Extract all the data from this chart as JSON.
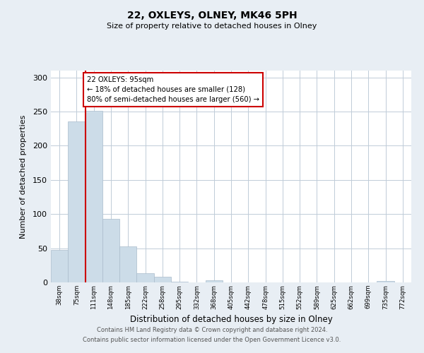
{
  "title1": "22, OXLEYS, OLNEY, MK46 5PH",
  "title2": "Size of property relative to detached houses in Olney",
  "xlabel": "Distribution of detached houses by size in Olney",
  "ylabel": "Number of detached properties",
  "bin_labels": [
    "38sqm",
    "75sqm",
    "111sqm",
    "148sqm",
    "185sqm",
    "222sqm",
    "258sqm",
    "295sqm",
    "332sqm",
    "368sqm",
    "405sqm",
    "442sqm",
    "478sqm",
    "515sqm",
    "552sqm",
    "589sqm",
    "625sqm",
    "662sqm",
    "699sqm",
    "735sqm",
    "772sqm"
  ],
  "bar_values": [
    48,
    236,
    251,
    93,
    53,
    13,
    8,
    1,
    0,
    3,
    0,
    0,
    0,
    0,
    0,
    0,
    0,
    0,
    0,
    2,
    0
  ],
  "bar_color": "#ccdce8",
  "bar_edgecolor": "#aabccc",
  "vline_x": 1.5,
  "vline_color": "#cc0000",
  "annotation_title": "22 OXLEYS: 95sqm",
  "annotation_line1": "← 18% of detached houses are smaller (128)",
  "annotation_line2": "80% of semi-detached houses are larger (560) →",
  "annotation_box_color": "#cc0000",
  "ylim": [
    0,
    310
  ],
  "yticks": [
    0,
    50,
    100,
    150,
    200,
    250,
    300
  ],
  "footnote1": "Contains HM Land Registry data © Crown copyright and database right 2024.",
  "footnote2": "Contains public sector information licensed under the Open Government Licence v3.0.",
  "background_color": "#e8eef4",
  "plot_bg_color": "#ffffff",
  "grid_color": "#c0ccd8"
}
